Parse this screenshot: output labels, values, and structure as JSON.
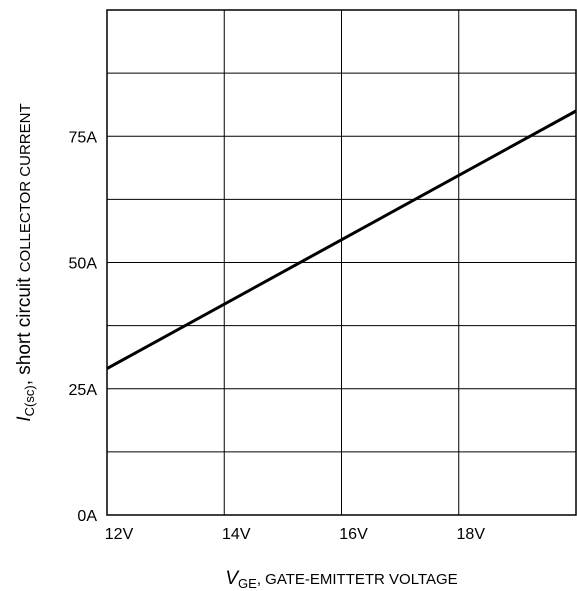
{
  "chart_data": {
    "type": "line",
    "xlabel": {
      "symbol": "V",
      "subscript": "GE",
      "rest": ", GATE-EMITTETR VOLTAGE"
    },
    "ylabel": {
      "symbol": "I",
      "subscript": "C(sc)",
      "mid": ", short circuit ",
      "rest": "COLLECTOR CURRENT"
    },
    "xlim": [
      12,
      20
    ],
    "ylim": [
      0,
      100
    ],
    "x_ticks": [
      {
        "value": 12,
        "label": "12V"
      },
      {
        "value": 14,
        "label": "14V"
      },
      {
        "value": 16,
        "label": "16V"
      },
      {
        "value": 18,
        "label": "18V"
      }
    ],
    "y_ticks": [
      {
        "value": 0,
        "label": "0A"
      },
      {
        "value": 25,
        "label": "25A"
      },
      {
        "value": 50,
        "label": "50A"
      },
      {
        "value": 75,
        "label": "75A"
      }
    ],
    "x_grid": [
      14,
      16,
      18
    ],
    "y_grid": [
      12.5,
      25,
      37.5,
      50,
      62.5,
      75,
      87.5
    ],
    "grid": true,
    "series": [
      {
        "x": [
          12,
          20
        ],
        "y": [
          29,
          80
        ],
        "color": "#000000"
      }
    ]
  }
}
